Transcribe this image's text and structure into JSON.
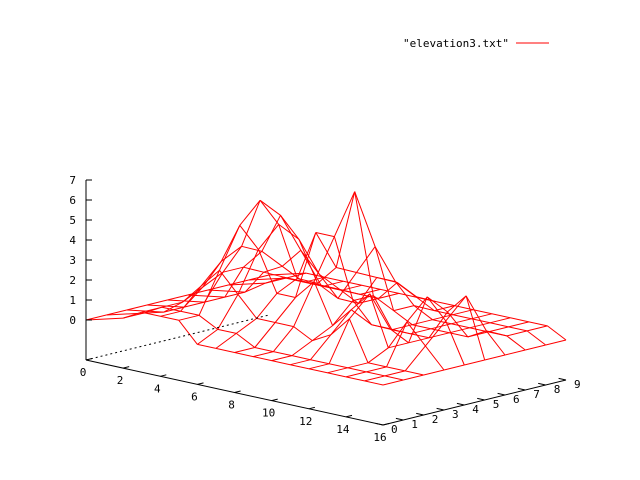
{
  "chart_data": {
    "type": "surface",
    "legend": {
      "label": "\"elevation3.txt\"",
      "color": "#ff0000",
      "position": "top-right"
    },
    "x": {
      "range": [
        0,
        16
      ],
      "ticks": [
        0,
        2,
        4,
        6,
        8,
        10,
        12,
        14,
        16
      ]
    },
    "y": {
      "range": [
        0,
        9
      ],
      "ticks": [
        0,
        1,
        2,
        3,
        4,
        5,
        6,
        7,
        8,
        9
      ]
    },
    "z": {
      "range": [
        -2,
        7
      ],
      "ticks": [
        0,
        1,
        2,
        3,
        4,
        5,
        6,
        7
      ]
    },
    "grid_x": [
      0,
      2,
      3,
      4,
      5,
      6,
      7,
      8,
      9,
      10,
      11,
      12,
      13,
      14,
      15,
      16
    ],
    "grid_y": [
      0,
      1,
      2,
      3,
      4,
      5,
      6,
      7,
      8,
      9
    ],
    "z_values": [
      [
        0,
        0,
        0,
        0,
        0,
        0,
        0,
        0,
        0,
        0
      ],
      [
        0.5,
        0.5,
        0.3,
        0.3,
        0.3,
        0.3,
        0.3,
        0.5,
        0.5,
        0.5
      ],
      [
        1,
        1,
        1,
        1.5,
        2,
        2,
        1.5,
        1,
        0.5,
        0.5
      ],
      [
        1,
        1,
        2,
        3,
        3.5,
        3,
        2,
        1,
        0.5,
        0.5
      ],
      [
        1,
        1,
        3,
        5,
        6,
        5,
        3,
        1,
        0.5,
        0.5
      ],
      [
        0,
        0.5,
        2,
        4,
        5,
        4,
        2,
        1,
        0.5,
        0.5
      ],
      [
        0,
        0.5,
        1,
        2,
        2.5,
        2,
        1,
        0.5,
        0.5,
        0.5
      ],
      [
        0,
        0,
        1,
        2,
        5,
        3,
        2.5,
        2,
        1.5,
        0.5
      ],
      [
        0,
        0,
        1,
        3,
        5,
        7,
        4,
        2,
        1,
        0.5
      ],
      [
        0,
        0,
        0.5,
        1,
        2,
        2,
        1,
        1,
        0.5,
        0.5
      ],
      [
        0,
        0,
        1,
        2,
        1,
        0.5,
        0.5,
        0.5,
        0.5,
        0.5
      ],
      [
        0,
        0,
        2,
        3,
        1,
        0.5,
        0.5,
        0.5,
        0.5,
        0.5
      ],
      [
        0,
        0,
        0,
        0.5,
        0.5,
        0.5,
        0.5,
        0.5,
        0.5,
        0.5
      ],
      [
        0,
        0,
        0,
        2,
        3,
        2,
        0.5,
        0.5,
        0.5,
        0.5
      ],
      [
        0,
        0,
        0,
        1,
        2,
        3,
        1,
        0.5,
        0.5,
        0.5
      ],
      [
        0,
        0,
        0,
        0,
        0,
        0,
        0,
        0,
        0,
        0
      ]
    ]
  }
}
